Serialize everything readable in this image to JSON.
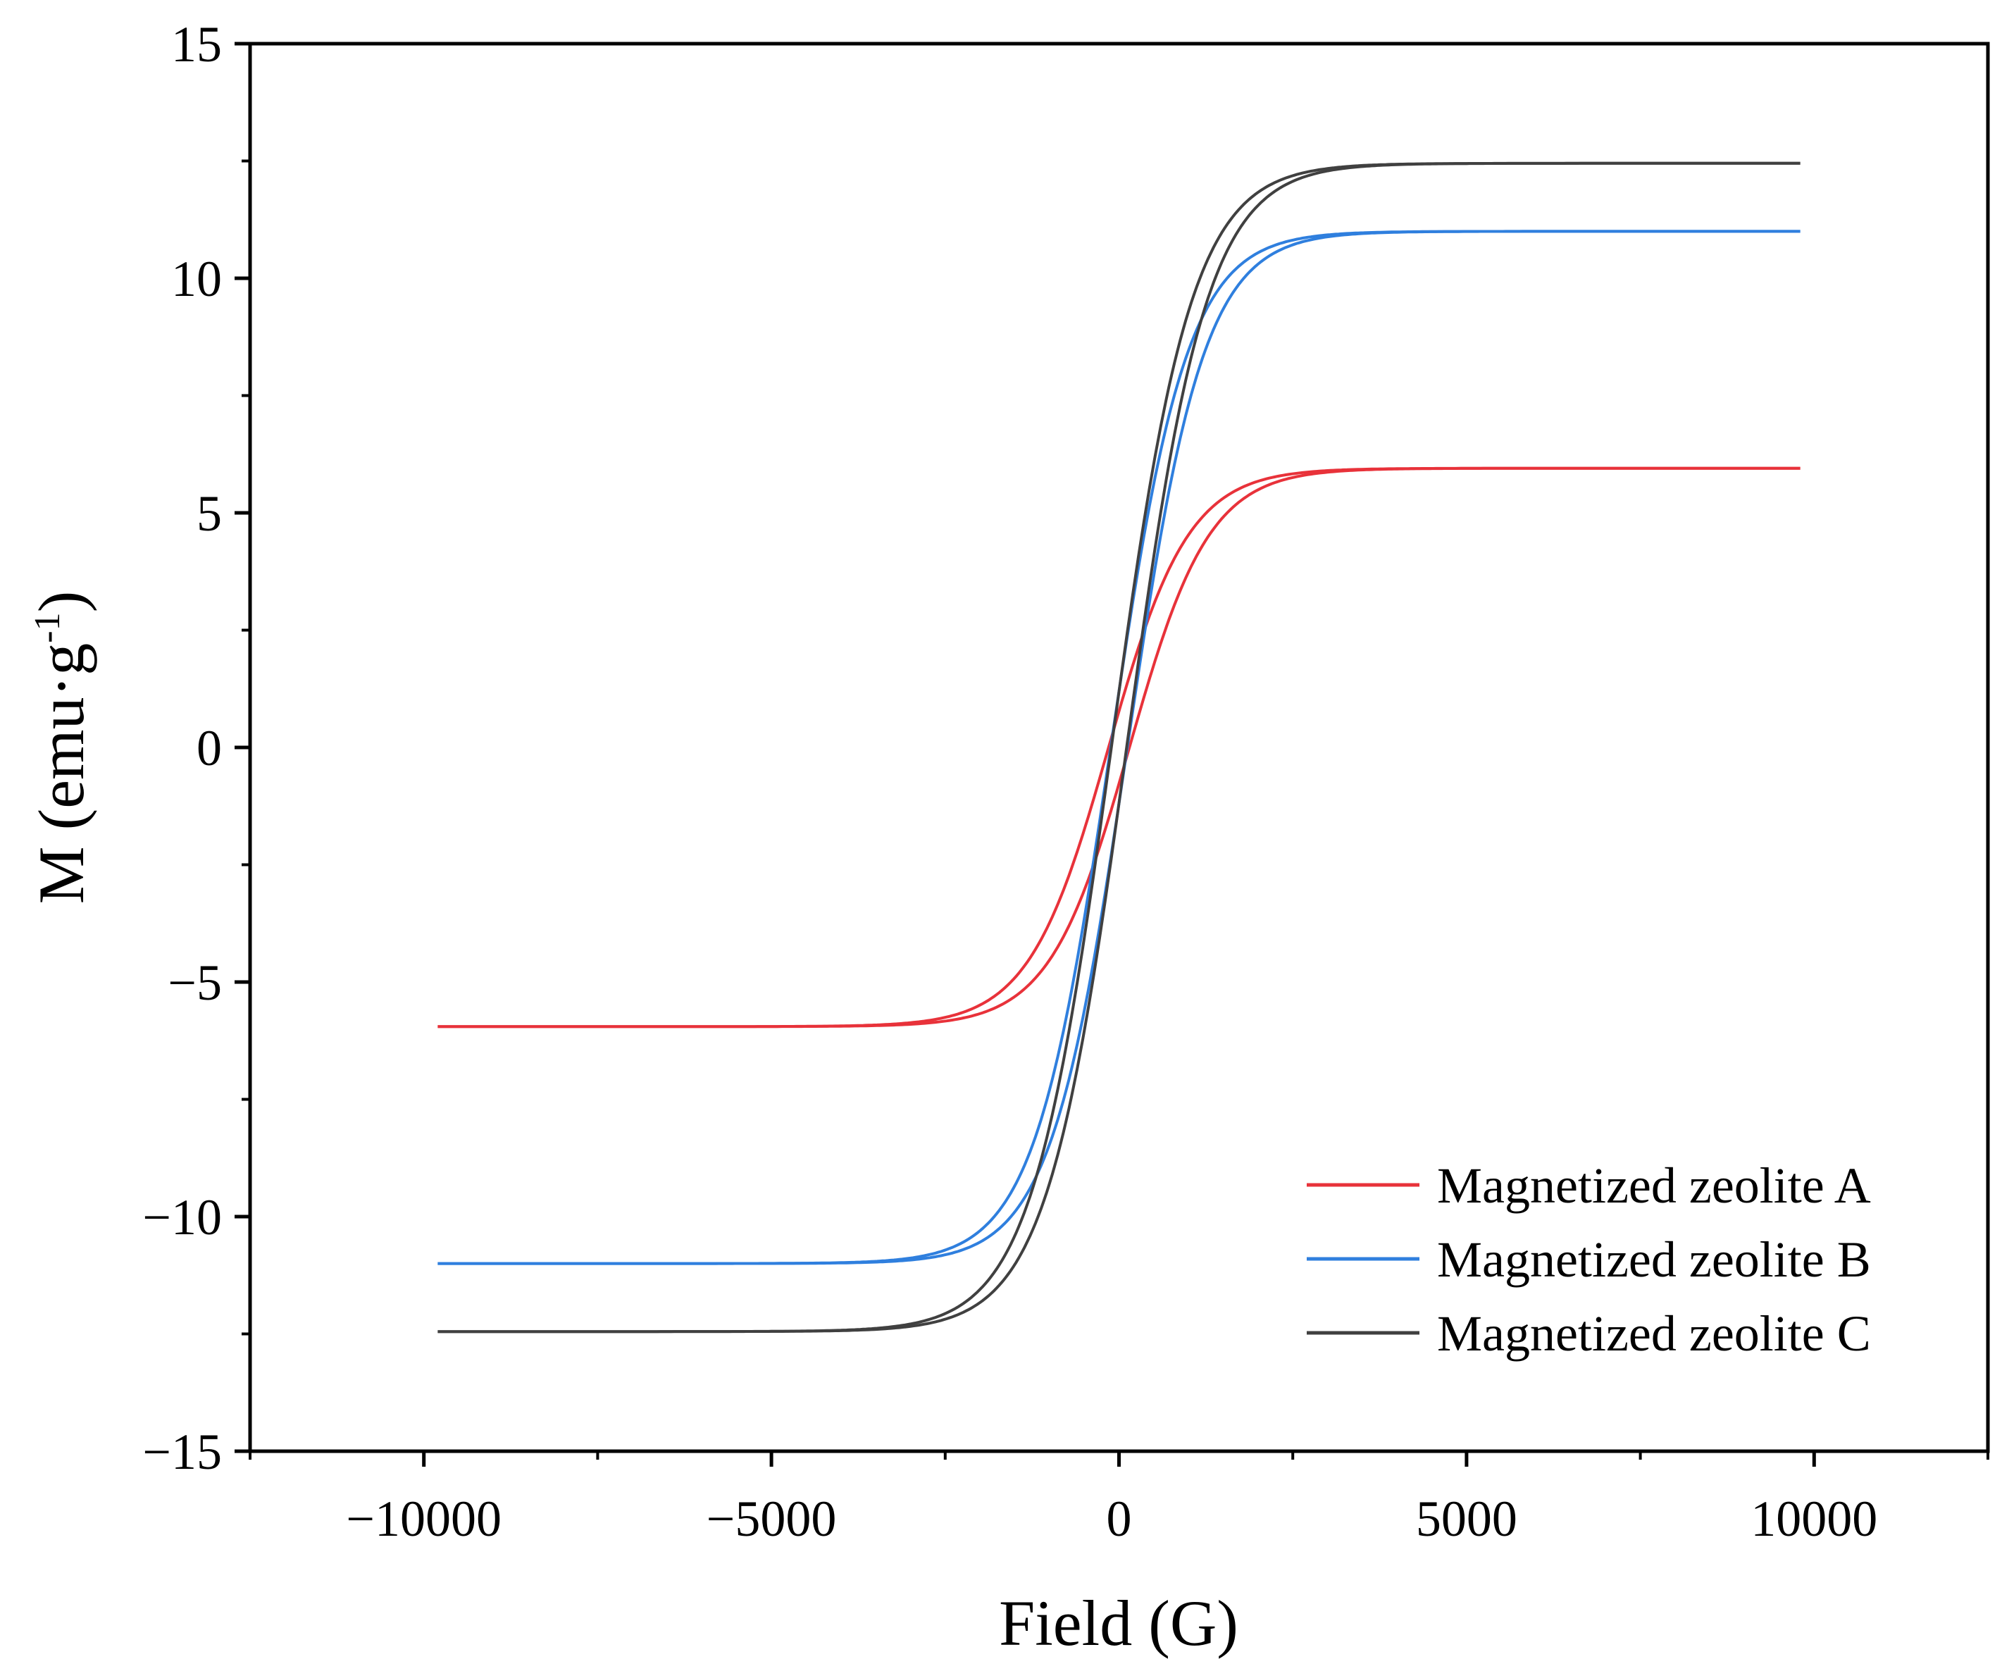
{
  "chart_data": {
    "type": "line",
    "title": "",
    "xlabel": "Field (G)",
    "ylabel_main": "M (emu·g",
    "ylabel_sup": "-1",
    "ylabel_close": ")",
    "xlim": [
      -12500,
      12500
    ],
    "ylim": [
      -15,
      15
    ],
    "xticks": [
      -10000,
      -5000,
      0,
      5000,
      10000
    ],
    "xtick_labels": [
      "−10000",
      "−5000",
      "0",
      "5000",
      "10000"
    ],
    "yticks": [
      -15,
      -10,
      -5,
      0,
      5,
      10,
      15
    ],
    "ytick_labels": [
      "−15",
      "−10",
      "−5",
      "0",
      "5",
      "10",
      "15"
    ],
    "grid": false,
    "legend_position": "bottom-right",
    "field_range": [
      -9800,
      9800
    ],
    "series": [
      {
        "name": "Magnetized zeolite A",
        "color": "#e8323a",
        "saturation": 5.95,
        "coercivity": 150,
        "width_G": 1150
      },
      {
        "name": "Magnetized zeolite B",
        "color": "#2f7fde",
        "saturation": 11.0,
        "coercivity": 120,
        "width_G": 1100
      },
      {
        "name": "Magnetized zeolite C",
        "color": "#404040",
        "saturation": 12.45,
        "coercivity": 110,
        "width_G": 1150
      }
    ]
  }
}
